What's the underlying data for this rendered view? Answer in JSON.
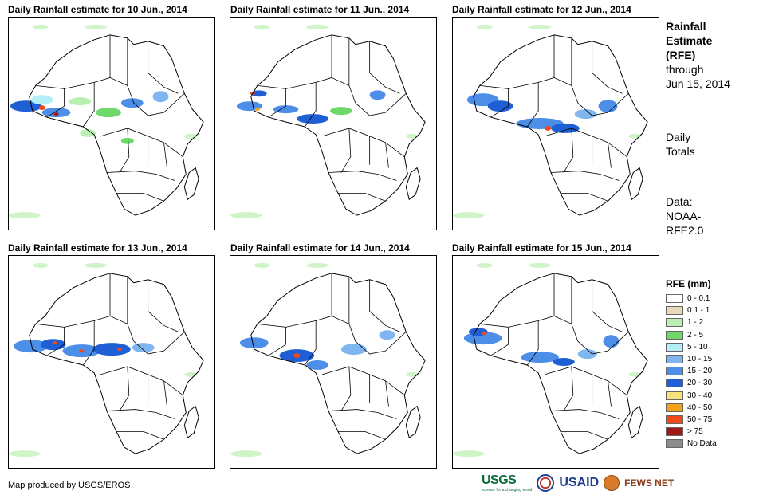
{
  "panels": [
    {
      "title": "Daily Rainfall estimate for 10 Jun., 2014"
    },
    {
      "title": "Daily Rainfall estimate for 11 Jun., 2014"
    },
    {
      "title": "Daily Rainfall estimate for 12 Jun., 2014"
    },
    {
      "title": "Daily Rainfall estimate for 13 Jun., 2014"
    },
    {
      "title": "Daily Rainfall estimate for 14 Jun., 2014"
    },
    {
      "title": "Daily Rainfall estimate for 15 Jun., 2014"
    }
  ],
  "side": {
    "heading_1": "Rainfall",
    "heading_2": "Estimate",
    "heading_3": "(RFE)",
    "through_1": "through",
    "through_2": "Jun 15, 2014",
    "daily_1": "Daily",
    "daily_2": "Totals",
    "data_1": "Data:",
    "data_2": "NOAA-",
    "data_3": "RFE2.0"
  },
  "legend": {
    "title": "RFE (mm)",
    "items": [
      {
        "label": "0 - 0.1",
        "color": "#ffffff"
      },
      {
        "label": "0.1 - 1",
        "color": "#e8d9b8"
      },
      {
        "label": "1 - 2",
        "color": "#b9f0b1"
      },
      {
        "label": "2 - 5",
        "color": "#6fd86a"
      },
      {
        "label": "5 - 10",
        "color": "#b4eef6"
      },
      {
        "label": "10 - 15",
        "color": "#7fb6ef"
      },
      {
        "label": "15 - 20",
        "color": "#4c8ee8"
      },
      {
        "label": "20 - 30",
        "color": "#1f5fd6"
      },
      {
        "label": "30 - 40",
        "color": "#f7e27d"
      },
      {
        "label": "40 - 50",
        "color": "#f3a21a"
      },
      {
        "label": "50 - 75",
        "color": "#f04a1c"
      },
      {
        "label": "> 75",
        "color": "#a01818"
      },
      {
        "label": "No Data",
        "color": "#8c8c8c"
      }
    ]
  },
  "credit": "Map produced by USGS/EROS",
  "logos": {
    "usgs": "USGS",
    "usgs_tagline": "science for a changing world",
    "usaid": "USAID",
    "fews": "FEWS NET"
  }
}
